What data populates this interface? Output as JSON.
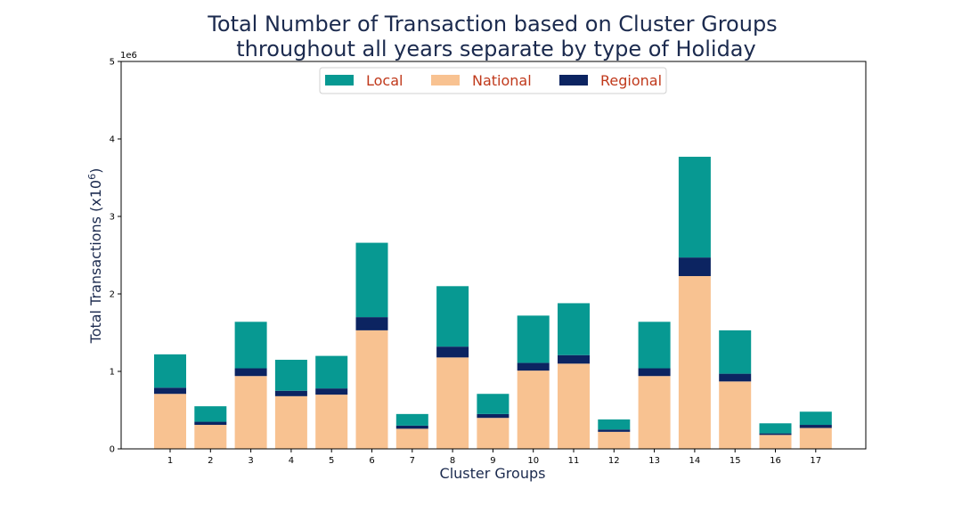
{
  "chart_data": {
    "type": "bar",
    "stacked": true,
    "title_line1": "Total Number of Transaction based on Cluster Groups",
    "title_line2": "throughout all years separate by type of Holiday",
    "xlabel": "Cluster Groups",
    "ylabel": "Total Transactions (x10",
    "ylabel_sup": "6",
    "ylabel_close": ")",
    "y_offset_text": "1e6",
    "ylim": [
      0,
      5000000
    ],
    "yticks": [
      0,
      1000000,
      2000000,
      3000000,
      4000000,
      5000000
    ],
    "ytick_labels": [
      "0",
      "1",
      "2",
      "3",
      "4",
      "5"
    ],
    "categories": [
      "1",
      "2",
      "3",
      "4",
      "5",
      "6",
      "7",
      "8",
      "9",
      "10",
      "11",
      "12",
      "13",
      "14",
      "15",
      "16",
      "17"
    ],
    "legend_position": "upper center",
    "series": [
      {
        "name": "National",
        "color": "#f8c291",
        "values": [
          710000,
          310000,
          940000,
          680000,
          700000,
          1530000,
          260000,
          1180000,
          400000,
          1010000,
          1100000,
          220000,
          940000,
          2230000,
          870000,
          180000,
          270000
        ]
      },
      {
        "name": "Regional",
        "color": "#0c2461",
        "values": [
          80000,
          40000,
          100000,
          70000,
          80000,
          170000,
          40000,
          140000,
          50000,
          100000,
          110000,
          30000,
          100000,
          240000,
          100000,
          20000,
          40000
        ]
      },
      {
        "name": "Local",
        "color": "#079992",
        "values": [
          430000,
          200000,
          600000,
          400000,
          420000,
          960000,
          150000,
          780000,
          260000,
          610000,
          670000,
          130000,
          600000,
          1300000,
          560000,
          130000,
          170000
        ]
      }
    ],
    "legend_order": [
      "Local",
      "National",
      "Regional"
    ]
  }
}
